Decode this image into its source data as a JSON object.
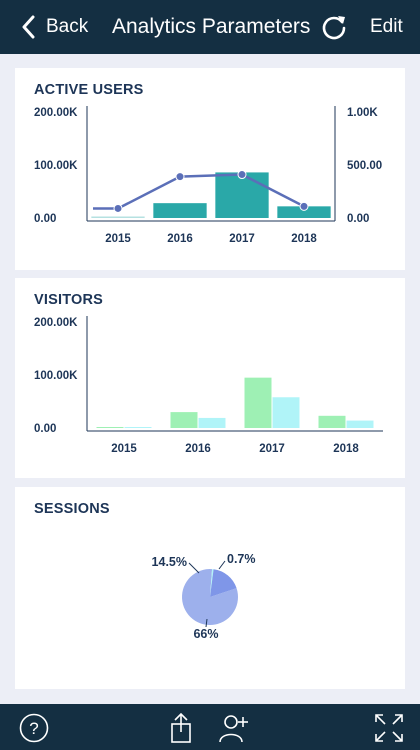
{
  "navbar": {
    "back_label": "Back",
    "title": "Analytics Parameters",
    "edit_label": "Edit",
    "icons": [
      "chevron-left-icon",
      "refresh-icon"
    ]
  },
  "cards": {
    "active_users": {
      "title": "ACTIVE USERS"
    },
    "visitors": {
      "title": "VISITORS"
    },
    "sessions": {
      "title": "SESSIONS"
    }
  },
  "tabbar": {
    "icons": [
      "help-icon",
      "share-icon",
      "add-user-icon",
      "fullscreen-icon"
    ]
  },
  "colors": {
    "navbar": "#142f42",
    "title_text": "#1d3557",
    "teal_bar": "#2aa8a8",
    "line": "#5b6fb8",
    "green_bar": "#9ef0b4",
    "cyan_bar": "#b0f4f8",
    "pie_main": "#9db0ec",
    "pie_cyan": "#b0f4f8",
    "pie_blue": "#7f96e8"
  },
  "chart_data": [
    {
      "type": "bar",
      "title": "ACTIVE USERS",
      "categories": [
        "2015",
        "2016",
        "2017",
        "2018"
      ],
      "series": [
        {
          "kind": "bar",
          "axis": "left",
          "values": [
            2000,
            28000,
            86000,
            22000
          ]
        },
        {
          "kind": "line",
          "axis": "right",
          "values": [
            90,
            390,
            410,
            110
          ]
        }
      ],
      "ylim": [
        0,
        200000
      ],
      "y2lim": [
        0,
        1000
      ],
      "yticks": [
        "0.00",
        "100.00K",
        "200.00K"
      ],
      "y2ticks": [
        "0.00",
        "500.00",
        "1.00K"
      ],
      "grid": false
    },
    {
      "type": "bar",
      "title": "VISITORS",
      "categories": [
        "2015",
        "2016",
        "2017",
        "2018"
      ],
      "series": [
        {
          "values": [
            500,
            30000,
            95000,
            23000
          ]
        },
        {
          "values": [
            300,
            19000,
            58000,
            14000
          ]
        }
      ],
      "ylim": [
        0,
        200000
      ],
      "yticks": [
        "0.00",
        "100.00K",
        "200.00K"
      ],
      "grid": false
    },
    {
      "type": "pie",
      "title": "SESSIONS",
      "values": [
        66,
        0.7,
        14.5
      ],
      "labels": [
        "66%",
        "0.7%",
        "14.5%"
      ]
    }
  ]
}
